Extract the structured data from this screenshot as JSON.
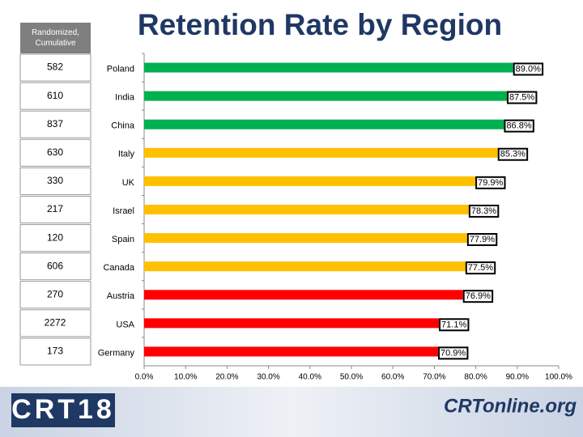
{
  "chart_data": {
    "type": "bar",
    "orientation": "horizontal",
    "title": "Retention Rate by Region",
    "sample_header": "Randomized, Cumulative",
    "sample_sizes": [
      582,
      610,
      837,
      630,
      330,
      217,
      120,
      606,
      270,
      2272,
      173
    ],
    "categories": [
      "Poland",
      "India",
      "China",
      "Italy",
      "UK",
      "Israel",
      "Spain",
      "Canada",
      "Austria",
      "USA",
      "Germany"
    ],
    "values": [
      89.0,
      87.5,
      86.8,
      85.3,
      79.9,
      78.3,
      77.9,
      77.5,
      76.9,
      71.1,
      70.9
    ],
    "value_labels": [
      "89.0%",
      "87.5%",
      "86.8%",
      "85.3%",
      "79.9%",
      "78.3%",
      "77.9%",
      "77.5%",
      "76.9%",
      "71.1%",
      "70.9%"
    ],
    "colors": [
      "#00b050",
      "#00b050",
      "#00b050",
      "#ffc000",
      "#ffc000",
      "#ffc000",
      "#ffc000",
      "#ffc000",
      "#ff0000",
      "#ff0000",
      "#ff0000"
    ],
    "xlim": [
      0,
      100
    ],
    "xticks": [
      {
        "value": 0,
        "label": "0.0%"
      },
      {
        "value": 10,
        "label": "10.0%"
      },
      {
        "value": 20,
        "label": "20.0%"
      },
      {
        "value": 30,
        "label": "30.0%"
      },
      {
        "value": 40,
        "label": "40.0%"
      },
      {
        "value": 50,
        "label": "50.0%"
      },
      {
        "value": 60,
        "label": "60.0%"
      },
      {
        "value": 70,
        "label": "70.0%"
      },
      {
        "value": 80,
        "label": "80.0%"
      },
      {
        "value": 90,
        "label": "90.0%"
      },
      {
        "value": 100,
        "label": "100.0%"
      }
    ],
    "grid": false
  },
  "footer": {
    "left_logo": "CRT18",
    "right_logo": "CRTonline.org"
  }
}
